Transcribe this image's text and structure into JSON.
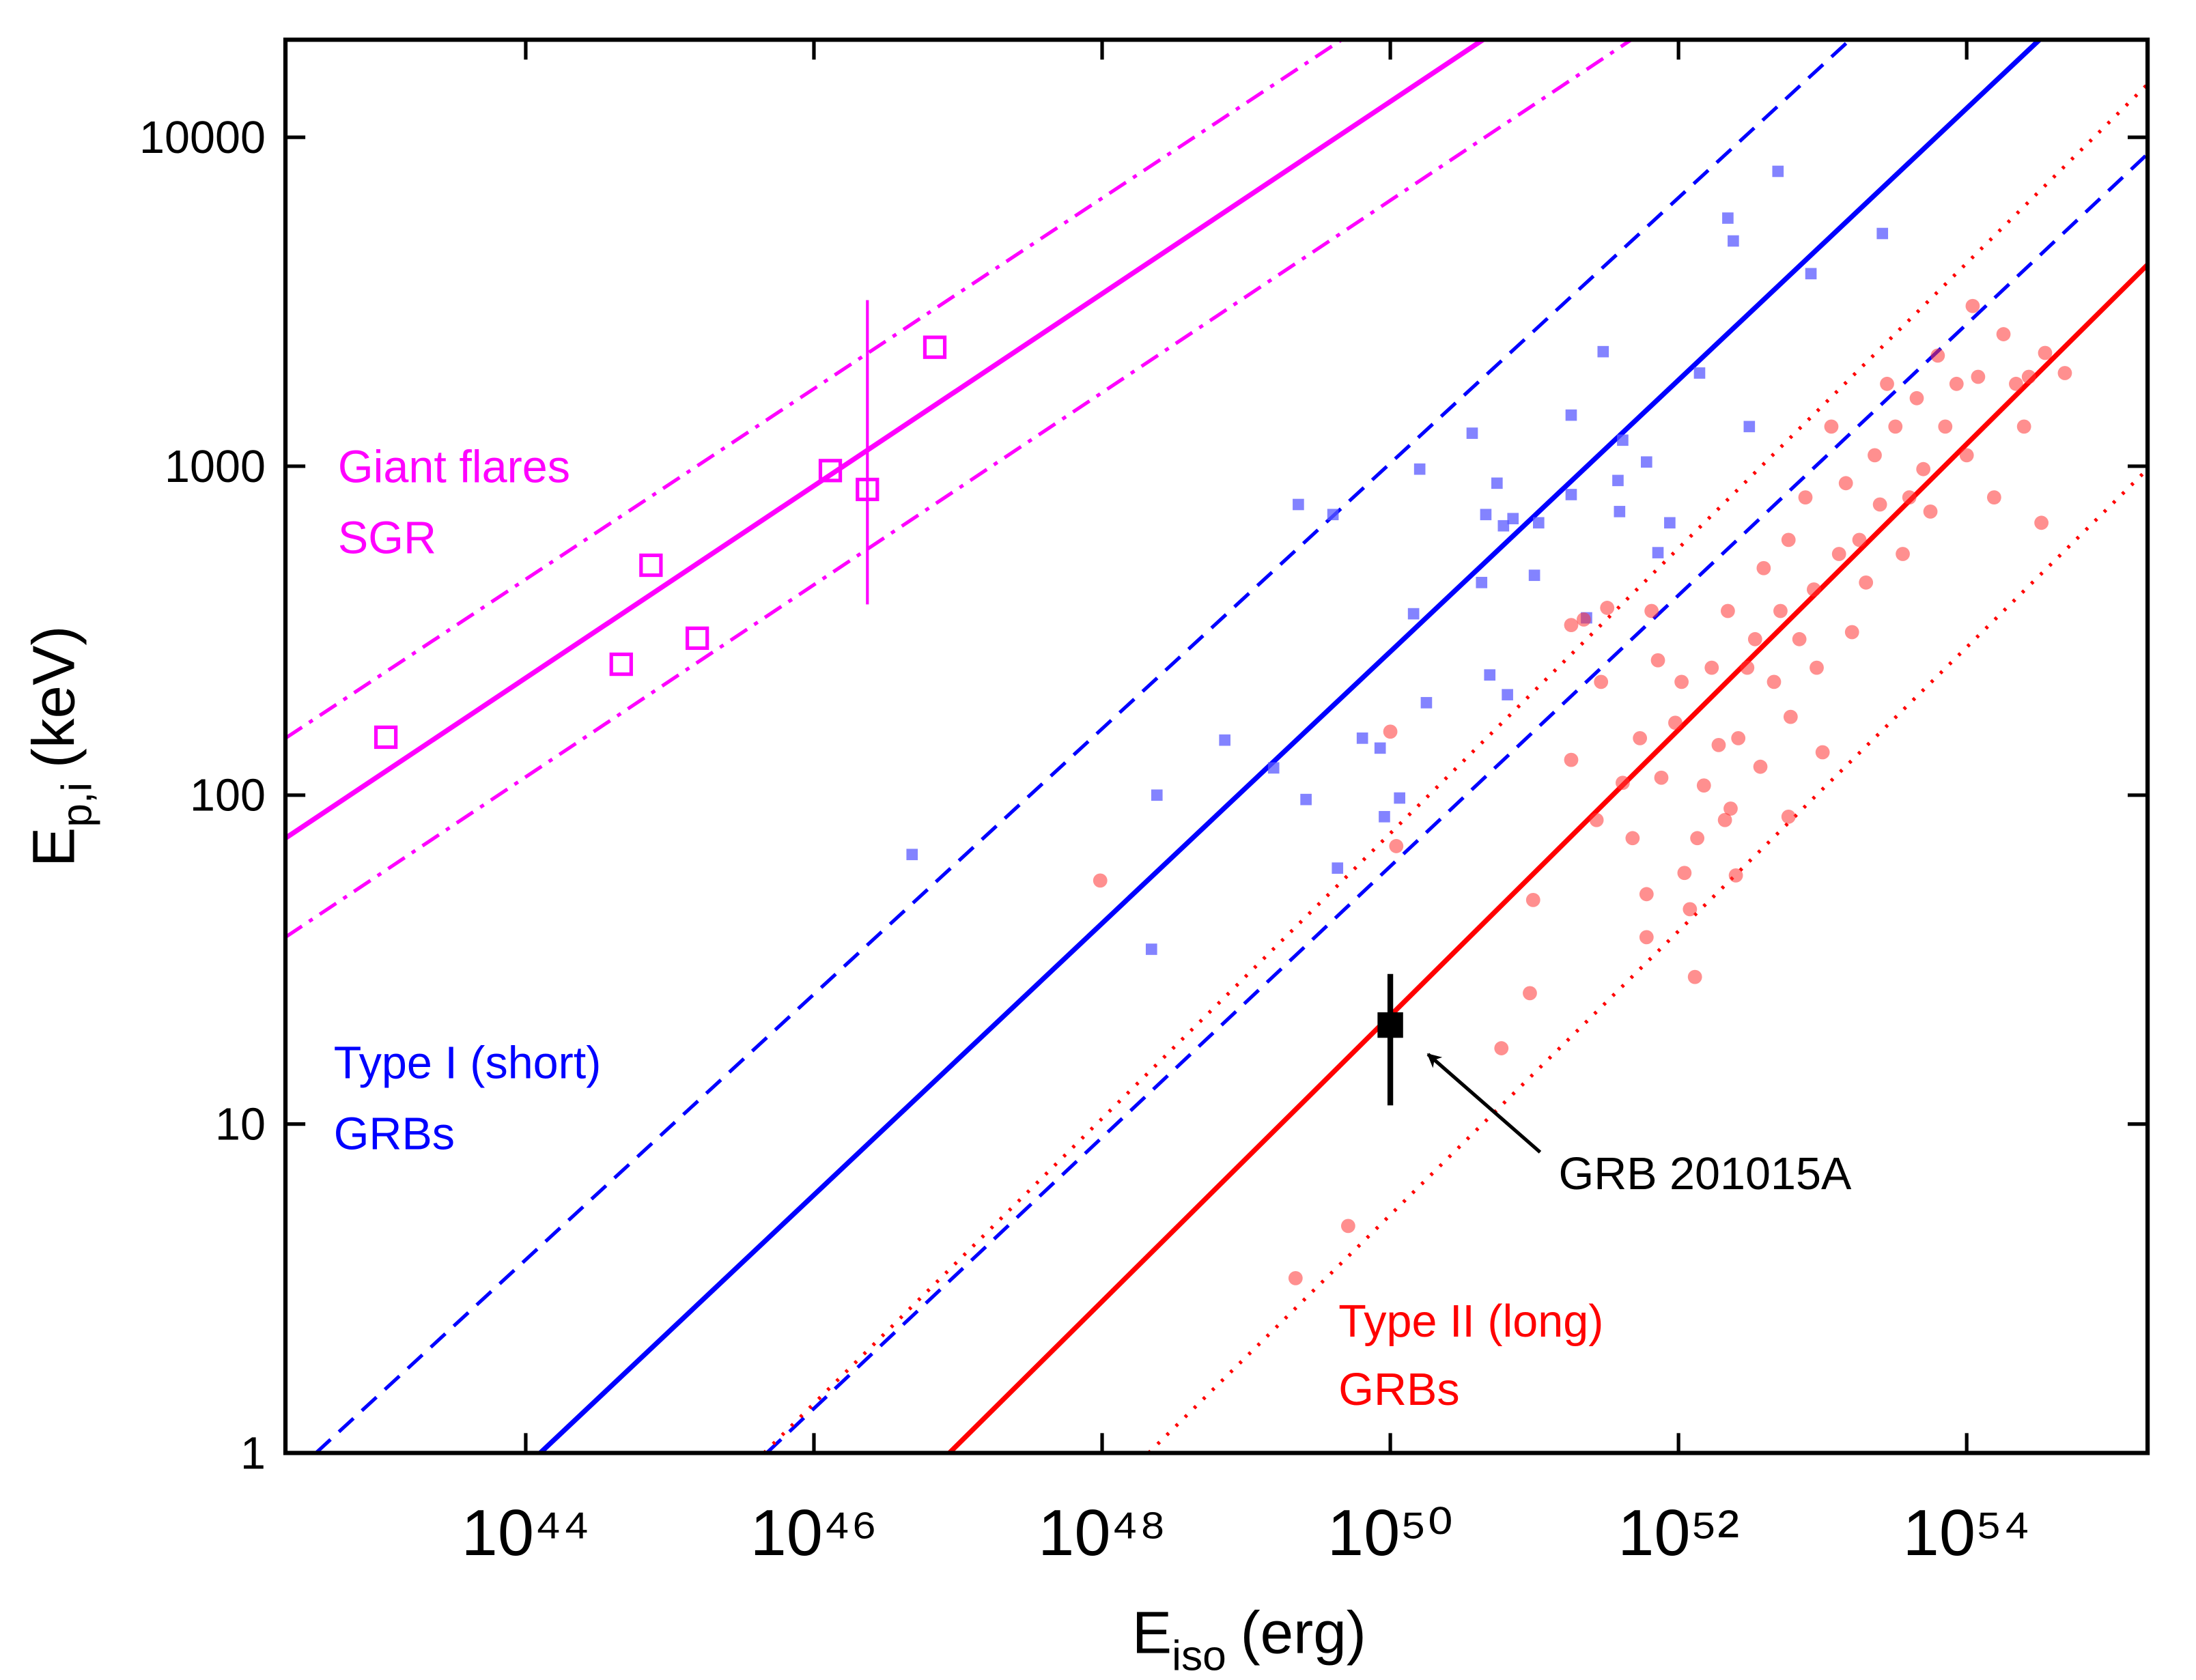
{
  "chart_data": {
    "type": "scatter",
    "x_log": true,
    "y_log": true,
    "xlim": [
      2.15e+42,
      1.8e+55
    ],
    "ylim": [
      1,
      19800
    ],
    "xticks": [
      {
        "value": 1e+44,
        "label": "10⁴⁴"
      },
      {
        "value": 1e+46,
        "label": "10⁴⁶"
      },
      {
        "value": 1e+48,
        "label": "10⁴⁸"
      },
      {
        "value": 1e+50,
        "label": "10⁵⁰"
      },
      {
        "value": 1e+52,
        "label": "10⁵²"
      },
      {
        "value": 1e+54,
        "label": "10⁵⁴"
      }
    ],
    "yticks": [
      1,
      10,
      100,
      1000,
      10000
    ],
    "x_label": {
      "text": "E",
      "sub": "iso",
      "rest": "(erg)"
    },
    "y_label": {
      "text": "E",
      "sub": "p,i",
      "rest": "(keV)"
    },
    "annotations": [
      {
        "text": "Giant flares",
        "color": "#ff00ff"
      },
      {
        "text": "SGR",
        "color": "#ff00ff"
      },
      {
        "text": "Type I (short)",
        "color": "#0000ff"
      },
      {
        "text": "GRBs",
        "color": "#0000ff"
      },
      {
        "text": "Type II (long)",
        "color": "#ff0000"
      },
      {
        "text": "GRBs",
        "color": "#ff0000"
      },
      {
        "text": "GRB 201015A",
        "color": "#000000"
      }
    ],
    "series": [
      {
        "kind": "line",
        "style": "solid",
        "color": "#ff00ff",
        "x": [
          2.15e+42,
          4.4e+50
        ],
        "values": [
          74,
          19800
        ]
      },
      {
        "kind": "line",
        "style": "dashdot",
        "color": "#ff00ff",
        "x": [
          2.15e+42,
          4.6e+49
        ],
        "values": [
          149,
          19800
        ]
      },
      {
        "kind": "line",
        "style": "dashdot",
        "color": "#ff00ff",
        "x": [
          2.15e+42,
          4.7e+51
        ],
        "values": [
          37,
          19800
        ]
      },
      {
        "kind": "line",
        "style": "solid",
        "color": "#0000ff",
        "x": [
          1.26e+44,
          3.2e+54
        ],
        "values": [
          1,
          19800
        ]
      },
      {
        "kind": "line",
        "style": "dash",
        "color": "#0000ff",
        "x": [
          3.5e+42,
          1.55e+53
        ],
        "values": [
          1,
          19800
        ]
      },
      {
        "kind": "line",
        "style": "dash",
        "color": "#0000ff",
        "x": [
          4.7e+45,
          1.8e+55
        ],
        "values": [
          1,
          8900
        ]
      },
      {
        "kind": "line",
        "style": "solid",
        "color": "#ff0000",
        "x": [
          8.7e+46,
          1.8e+55
        ],
        "values": [
          1,
          4100
        ]
      },
      {
        "kind": "line",
        "style": "dot",
        "color": "#ff0000",
        "x": [
          4.5e+45,
          1.8e+55
        ],
        "values": [
          1,
          14500
        ]
      },
      {
        "kind": "line",
        "style": "dot",
        "color": "#ff0000",
        "x": [
          2.1e+48,
          1.8e+55
        ],
        "values": [
          1,
          980
        ]
      },
      {
        "kind": "points",
        "marker": "open-square",
        "color": "#ff00ff",
        "x": [
          1.07e+43,
          4.6e+44,
          7.4e+44,
          1.55e+45,
          1.3e+46,
          2.35e+46,
          6.9e+46
        ],
        "values": [
          150,
          250,
          500,
          300,
          970,
          850,
          2300
        ],
        "errors": [
          null,
          null,
          null,
          null,
          null,
          {
            "minus": 470,
            "plus": 2350
          },
          null
        ]
      },
      {
        "kind": "points",
        "marker": "square",
        "color": "#5a5aff",
        "x": [
          4.8e+46,
          2.4e+48,
          2.2e+48,
          7.1e+48,
          1.55e+49,
          2.3e+49,
          2.6e+49,
          4e+49,
          4.3e+49,
          6.4e+49,
          8.5e+49,
          9.1e+49,
          1.16e+50,
          1.45e+50,
          1.6e+50,
          1.78e+50,
          3.7e+50,
          4.3e+50,
          4.6e+50,
          4.9e+50,
          5.5e+50,
          6.1e+50,
          6.5e+50,
          7.1e+50,
          1e+51,
          1.07e+51,
          1.8e+51,
          1.8e+51,
          2.3e+51,
          3e+51,
          3.8e+51,
          3.9e+51,
          4.1e+51,
          6e+51,
          7.2e+51,
          8.7e+51,
          1.4e+52,
          2.2e+52,
          2.4e+52,
          3.1e+52,
          4.9e+52,
          8.3e+52,
          2.6e+53
        ],
        "values": [
          66,
          100,
          34,
          147,
          121,
          765,
          97,
          713,
          60,
          149,
          139,
          86,
          98,
          356,
          980,
          191,
          1260,
          443,
          713,
          232,
          888,
          659,
          202,
          693,
          466,
          673,
          1430,
          820,
          346,
          2230,
          905,
          728,
          1200,
          1030,
          546,
          673,
          1920,
          5680,
          4840,
          1320,
          7880,
          3850,
          5100
        ]
      },
      {
        "kind": "points",
        "marker": "circle",
        "color": "#ff3333",
        "x": [
          9.7e+47,
          2.2e+49,
          5.1e+49,
          1e+50,
          1.1e+50,
          5.9e+50,
          9.3e+50,
          9.8e+50,
          1.8e+51,
          1.8e+51,
          2.2e+51,
          2.7e+51,
          2.9e+51,
          3.2e+51,
          4.1e+51,
          4.8e+51,
          5.4e+51,
          6e+51,
          6.5e+51,
          7.2e+51,
          7.6e+51,
          9.5e+51,
          1.05e+52,
          1.1e+52,
          1.2e+52,
          1.35e+52,
          1.5e+52,
          1.7e+52,
          1.9e+52,
          2.1e+52,
          2.2e+52,
          2.5e+52,
          2.6e+52,
          3e+52,
          3.4e+52,
          3.7e+52,
          3.9e+52,
          4.6e+52,
          5.1e+52,
          5.8e+52,
          6e+52,
          6.9e+52,
          7.6e+52,
          8.7e+52,
          9.1e+52,
          1e+53,
          1.15e+53,
          1.3e+53,
          1.45e+53,
          1.6e+53,
          1.8e+53,
          2e+53,
          2.3e+53,
          2.5e+53,
          2.8e+53,
          3.2e+53,
          3.6e+53,
          4e+53,
          4.5e+53,
          5e+53,
          5.6e+53,
          6.3e+53,
          7.1e+53,
          8.5e+53,
          1e+54,
          1.1e+54,
          1.2e+54,
          1.55e+54,
          1.8e+54,
          2.2e+54,
          2.7e+54,
          3.5e+54,
          4.8e+54,
          3.3e+54,
          2.5e+54,
          2.3e+52,
          5.8e+52,
          6e+51,
          1.3e+52
        ],
        "values": [
          55,
          3.4,
          4.9,
          156,
          70,
          17,
          25,
          48,
          128,
          329,
          342,
          84,
          221,
          371,
          109,
          74,
          149,
          37,
          363,
          257,
          113,
          166,
          221,
          58,
          45,
          74,
          107,
          244,
          142,
          84,
          363,
          57,
          149,
          244,
          298,
          122,
          490,
          221,
          363,
          597,
          173,
          298,
          804,
          422,
          244,
          135,
          1320,
          541,
          888,
          313,
          597,
          443,
          1080,
          765,
          1780,
          1320,
          541,
          804,
          1610,
          980,
          728,
          2170,
          1320,
          1780,
          1080,
          3070,
          1870,
          804,
          2520,
          1780,
          1870,
          2210,
          1920,
          673,
          1320,
          91,
          86,
          50,
          28
        ]
      },
      {
        "kind": "points",
        "marker": "square",
        "color": "#000000",
        "size": "large",
        "x": [
          1e+50
        ],
        "values": [
          20
        ],
        "errors": [
          {
            "minus": 8.6,
            "plus": 8.6
          }
        ]
      }
    ]
  }
}
